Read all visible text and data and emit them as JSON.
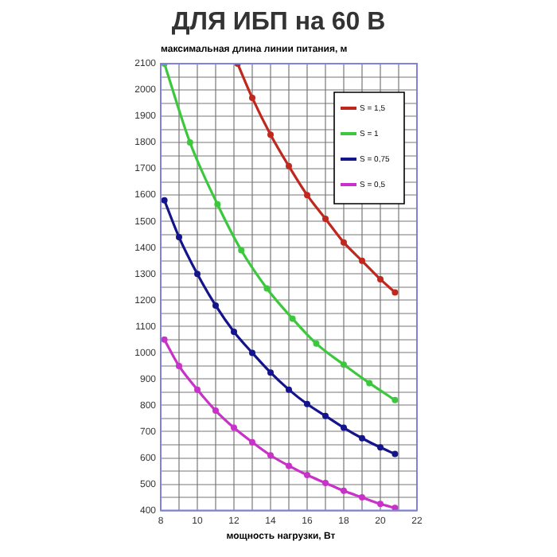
{
  "chart_data": {
    "type": "line",
    "title": "ДЛЯ ИБП на 60 В",
    "xlabel": "мощность нагрузки, Вт",
    "ylabel": "максимальная длина линии питания, м",
    "xlim": [
      8,
      22
    ],
    "ylim": [
      400,
      2100
    ],
    "xticks": [
      8,
      {
        "value": 9,
        "label": null
      },
      10,
      {
        "value": 11,
        "label": null
      },
      12,
      {
        "value": 13,
        "label": null
      },
      14,
      {
        "value": 15,
        "label": null
      },
      16,
      {
        "value": 17,
        "label": null
      },
      18,
      {
        "value": 19,
        "label": null
      },
      20,
      {
        "value": 21,
        "label": null
      },
      22
    ],
    "yticks": [
      400,
      {
        "value": 450,
        "label": null
      },
      500,
      {
        "value": 550,
        "label": null
      },
      600,
      {
        "value": 650,
        "label": null
      },
      700,
      {
        "value": 750,
        "label": null
      },
      800,
      {
        "value": 850,
        "label": null
      },
      900,
      {
        "value": 950,
        "label": null
      },
      1000,
      {
        "value": 1050,
        "label": null
      },
      1100,
      {
        "value": 1150,
        "label": null
      },
      1200,
      {
        "value": 1250,
        "label": null
      },
      1300,
      {
        "value": 1350,
        "label": null
      },
      1400,
      {
        "value": 1450,
        "label": null
      },
      1500,
      {
        "value": 1550,
        "label": null
      },
      1600,
      {
        "value": 1650,
        "label": null
      },
      1700,
      {
        "value": 1750,
        "label": null
      },
      1800,
      {
        "value": 1850,
        "label": null
      },
      1900,
      {
        "value": 1950,
        "label": null
      },
      2000,
      {
        "value": 2050,
        "label": null
      },
      2100
    ],
    "grid": true,
    "legend": "top right",
    "marker": "circle",
    "line_style": "solid",
    "series": [
      {
        "name": "S = 1,5",
        "color": "#c0281e",
        "x": [
          12.2,
          13,
          14,
          15,
          16,
          17,
          18,
          19,
          20,
          20.8
        ],
        "values": [
          2100,
          1970,
          1830,
          1710,
          1600,
          1510,
          1420,
          1350,
          1280,
          1230
        ]
      },
      {
        "name": "S = 1",
        "color": "#3cc83c",
        "x": [
          8.2,
          9.6,
          11.1,
          12.4,
          13.8,
          15.2,
          16.5,
          18,
          19.4,
          20.8
        ],
        "values": [
          2100,
          1800,
          1565,
          1390,
          1245,
          1130,
          1035,
          955,
          885,
          820
        ]
      },
      {
        "name": "S = 0,75",
        "color": "#14148c",
        "x": [
          8.2,
          9,
          10,
          11,
          12,
          13,
          14,
          15,
          16,
          17,
          18,
          19,
          20,
          20.8
        ],
        "values": [
          1580,
          1440,
          1300,
          1180,
          1080,
          1000,
          925,
          860,
          805,
          760,
          715,
          675,
          640,
          615
        ]
      },
      {
        "name": "S = 0,5",
        "color": "#c832c8",
        "x": [
          8.2,
          9,
          10,
          11,
          12,
          13,
          14,
          15,
          16,
          17,
          18,
          19,
          20,
          20.8
        ],
        "values": [
          1050,
          950,
          860,
          780,
          715,
          660,
          610,
          570,
          535,
          505,
          475,
          450,
          425,
          410
        ]
      }
    ]
  }
}
